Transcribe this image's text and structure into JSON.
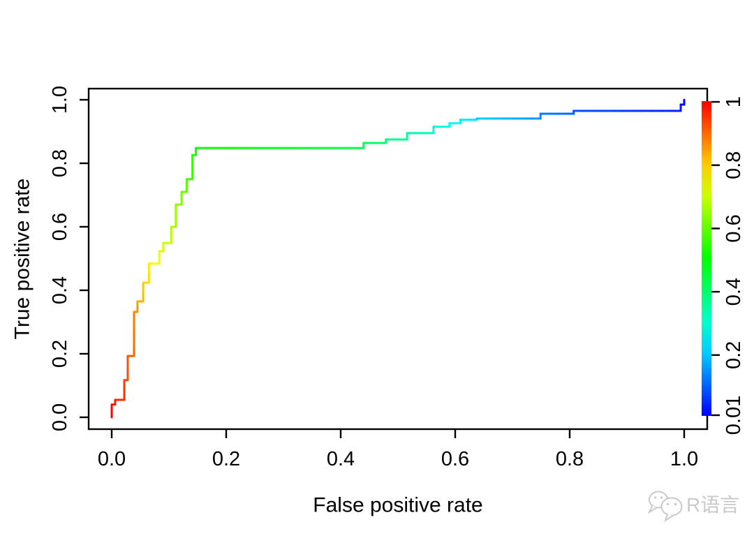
{
  "chart_data": {
    "type": "line",
    "title": "",
    "xlabel": "False positive rate",
    "ylabel": "True positive rate",
    "xlim": [
      0,
      1
    ],
    "ylim": [
      0,
      1
    ],
    "grid": false,
    "x_ticks": [
      "0.0",
      "0.2",
      "0.4",
      "0.6",
      "0.8",
      "1.0"
    ],
    "y_ticks": [
      "0.0",
      "0.2",
      "0.4",
      "0.6",
      "0.8",
      "1.0"
    ],
    "series": [
      {
        "name": "ROC step curve colorized by threshold",
        "points_fpr_tpr_hue": [
          [
            0.0,
            0.0,
            0
          ],
          [
            0.0,
            0.04,
            3
          ],
          [
            0.006,
            0.04,
            5
          ],
          [
            0.006,
            0.055,
            8
          ],
          [
            0.022,
            0.055,
            10
          ],
          [
            0.022,
            0.117,
            14
          ],
          [
            0.028,
            0.117,
            17
          ],
          [
            0.028,
            0.193,
            20
          ],
          [
            0.039,
            0.193,
            24
          ],
          [
            0.039,
            0.332,
            30
          ],
          [
            0.045,
            0.332,
            34
          ],
          [
            0.045,
            0.365,
            38
          ],
          [
            0.055,
            0.365,
            42
          ],
          [
            0.055,
            0.424,
            48
          ],
          [
            0.065,
            0.424,
            52
          ],
          [
            0.065,
            0.484,
            56
          ],
          [
            0.083,
            0.484,
            62
          ],
          [
            0.083,
            0.523,
            65
          ],
          [
            0.09,
            0.523,
            68
          ],
          [
            0.09,
            0.549,
            71
          ],
          [
            0.104,
            0.549,
            74
          ],
          [
            0.104,
            0.6,
            78
          ],
          [
            0.112,
            0.6,
            81
          ],
          [
            0.112,
            0.67,
            85
          ],
          [
            0.122,
            0.67,
            89
          ],
          [
            0.122,
            0.71,
            93
          ],
          [
            0.131,
            0.71,
            97
          ],
          [
            0.131,
            0.75,
            100
          ],
          [
            0.141,
            0.75,
            104
          ],
          [
            0.141,
            0.826,
            110
          ],
          [
            0.147,
            0.826,
            113
          ],
          [
            0.147,
            0.848,
            116
          ],
          [
            0.44,
            0.848,
            138
          ],
          [
            0.44,
            0.864,
            142
          ],
          [
            0.479,
            0.864,
            147
          ],
          [
            0.479,
            0.875,
            150
          ],
          [
            0.516,
            0.875,
            155
          ],
          [
            0.516,
            0.895,
            160
          ],
          [
            0.562,
            0.895,
            166
          ],
          [
            0.562,
            0.915,
            170
          ],
          [
            0.59,
            0.915,
            174
          ],
          [
            0.59,
            0.926,
            177
          ],
          [
            0.609,
            0.926,
            180
          ],
          [
            0.609,
            0.937,
            183
          ],
          [
            0.638,
            0.937,
            186
          ],
          [
            0.638,
            0.941,
            190
          ],
          [
            0.749,
            0.941,
            205
          ],
          [
            0.749,
            0.956,
            210
          ],
          [
            0.807,
            0.956,
            215
          ],
          [
            0.807,
            0.965,
            220
          ],
          [
            0.994,
            0.965,
            232
          ],
          [
            0.994,
            0.985,
            236
          ],
          [
            1.0,
            0.985,
            238
          ],
          [
            1.0,
            1.0,
            240
          ]
        ]
      }
    ],
    "colorbar": {
      "position": "right",
      "range": [
        0.01,
        1
      ],
      "tick_labels": [
        "1",
        "0.8",
        "0.6",
        "0.4",
        "0.2",
        "0.01"
      ],
      "tick_values": [
        1,
        0.8,
        0.6,
        0.4,
        0.2,
        0.01
      ],
      "colors_top_to_bottom": [
        "#ff0000",
        "#ff6600",
        "#ffcc00",
        "#ccff00",
        "#66ff00",
        "#00ff00",
        "#00ff66",
        "#00ffcc",
        "#00ccff",
        "#0066ff",
        "#0000ff"
      ]
    },
    "axis_color": "#000000",
    "background_color": "#ffffff"
  },
  "watermark": {
    "label": "R语言",
    "icon": "wechat-icon",
    "color": "#c9c9c9"
  }
}
